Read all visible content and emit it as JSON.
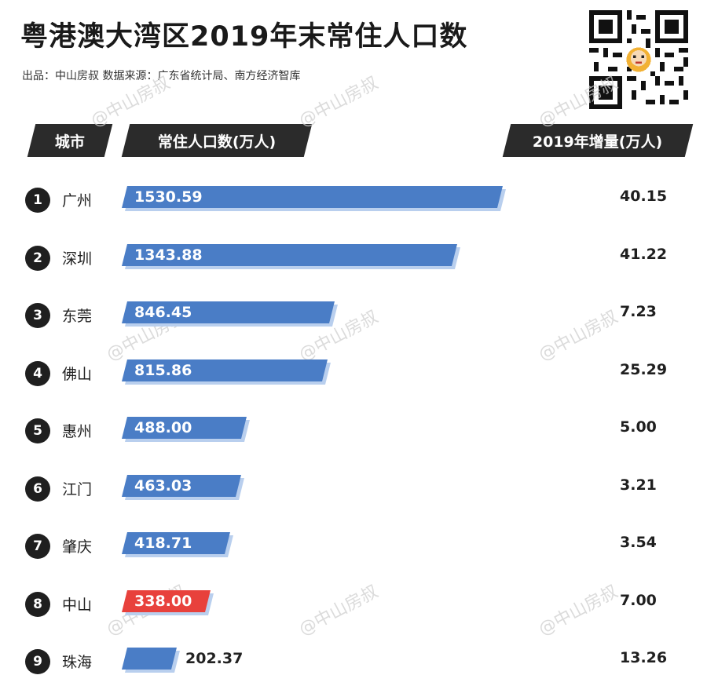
{
  "header": {
    "title": "粤港澳大湾区2019年末常住人口数",
    "subtitle": "出品：中山房叔  数据来源：广东省统计局、南方经济智库",
    "watermark": "@中山房叔"
  },
  "table_headers": {
    "city": "城市",
    "population": "常住人口数(万人)",
    "increase": "2019年增量(万人)"
  },
  "colors": {
    "bar_default": "#4a7dc6",
    "bar_highlight": "#e8413c",
    "bar_shadow": "#b9cfee",
    "header_bg": "#2b2b2b"
  },
  "chart_data": {
    "type": "bar",
    "orientation": "horizontal",
    "title": "粤港澳大湾区2019年末常住人口数",
    "categories": [
      "广州",
      "深圳",
      "东莞",
      "佛山",
      "惠州",
      "江门",
      "肇庆",
      "中山",
      "珠海"
    ],
    "ranks": [
      "1",
      "2",
      "3",
      "4",
      "5",
      "6",
      "7",
      "8",
      "9"
    ],
    "series": [
      {
        "name": "常住人口数(万人)",
        "values": [
          1530.59,
          1343.88,
          846.45,
          815.86,
          488.0,
          463.03,
          418.71,
          338.0,
          202.37
        ],
        "labels": [
          "1530.59",
          "1343.88",
          "846.45",
          "815.86",
          "488.00",
          "463.03",
          "418.71",
          "338.00",
          "202.37"
        ]
      },
      {
        "name": "2019年增量(万人)",
        "values": [
          40.15,
          41.22,
          7.23,
          25.29,
          5.0,
          3.21,
          3.54,
          7.0,
          13.26
        ],
        "labels": [
          "40.15",
          "41.22",
          "7.23",
          "25.29",
          "5.00",
          "3.21",
          "3.54",
          "7.00",
          "13.26"
        ]
      }
    ],
    "highlight_category": "中山"
  }
}
